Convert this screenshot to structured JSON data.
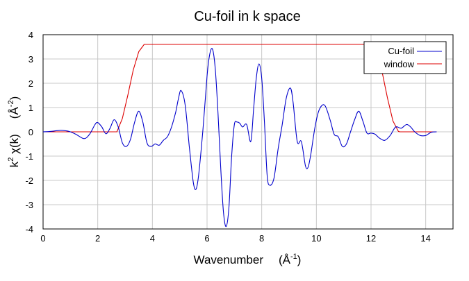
{
  "chart_data": {
    "type": "line",
    "title": "Cu-foil in k space",
    "xlabel": "Wavenumber    (Å-1)",
    "xlabel_parts": {
      "main": "Wavenumber",
      "unit_base": "(Å",
      "unit_sup": "-1",
      "unit_close": ")"
    },
    "ylabel": "k2 χ(k)    (Å-2)",
    "ylabel_parts": {
      "k": "k",
      "k_sup": "2",
      "chi": " χ(k)",
      "unit_base": "(Å",
      "unit_sup": "-2",
      "unit_close": ")"
    },
    "xlim": [
      0,
      15
    ],
    "ylim": [
      -4,
      4
    ],
    "xticks": [
      0,
      2,
      4,
      6,
      8,
      10,
      12,
      14
    ],
    "yticks": [
      -4,
      -3,
      -2,
      -1,
      0,
      1,
      2,
      3,
      4
    ],
    "grid": true,
    "legend_position": "upper right",
    "series": [
      {
        "name": "Cu-foil",
        "color": "#0000cc",
        "x": [
          0,
          0.3,
          0.6,
          0.8,
          1.0,
          1.2,
          1.5,
          1.7,
          1.9,
          2.0,
          2.15,
          2.3,
          2.45,
          2.6,
          2.75,
          2.9,
          3.05,
          3.2,
          3.35,
          3.5,
          3.65,
          3.8,
          3.95,
          4.1,
          4.25,
          4.4,
          4.55,
          4.7,
          4.85,
          4.95,
          5.05,
          5.2,
          5.35,
          5.5,
          5.6,
          5.7,
          5.85,
          6.0,
          6.1,
          6.2,
          6.3,
          6.4,
          6.5,
          6.6,
          6.7,
          6.8,
          6.9,
          7.0,
          7.1,
          7.2,
          7.3,
          7.45,
          7.6,
          7.7,
          7.8,
          7.9,
          8.0,
          8.1,
          8.2,
          8.3,
          8.45,
          8.6,
          8.75,
          8.9,
          9.05,
          9.15,
          9.3,
          9.45,
          9.6,
          9.7,
          9.8,
          9.95,
          10.1,
          10.3,
          10.5,
          10.65,
          10.8,
          10.95,
          11.1,
          11.25,
          11.4,
          11.55,
          11.7,
          11.85,
          12.0,
          12.15,
          12.3,
          12.5,
          12.7,
          12.9,
          13.1,
          13.3,
          13.45,
          13.6,
          13.8,
          14.0,
          14.2,
          14.4
        ],
        "y": [
          0,
          0.02,
          0.06,
          0.05,
          0,
          -0.1,
          -0.28,
          -0.1,
          0.3,
          0.38,
          0.2,
          -0.08,
          0.15,
          0.5,
          0.2,
          -0.45,
          -0.6,
          -0.3,
          0.4,
          0.85,
          0.4,
          -0.45,
          -0.6,
          -0.5,
          -0.55,
          -0.35,
          -0.2,
          0.2,
          0.8,
          1.35,
          1.7,
          1.1,
          -0.6,
          -2.1,
          -2.35,
          -1.7,
          0.1,
          2.3,
          3.2,
          3.4,
          2.6,
          0.8,
          -1.5,
          -3.3,
          -3.9,
          -3.1,
          -1.0,
          0.3,
          0.4,
          0.35,
          0.2,
          0.3,
          -0.4,
          0.9,
          2.2,
          2.8,
          2.2,
          0.4,
          -1.8,
          -2.2,
          -1.9,
          -0.7,
          0.3,
          1.4,
          1.8,
          1.2,
          -0.4,
          -0.4,
          -1.4,
          -1.45,
          -0.9,
          0.2,
          0.9,
          1.1,
          0.5,
          -0.1,
          -0.2,
          -0.6,
          -0.5,
          0.0,
          0.5,
          0.85,
          0.45,
          -0.05,
          -0.05,
          -0.1,
          -0.25,
          -0.35,
          -0.15,
          0.2,
          0.15,
          0.3,
          0.2,
          0.0,
          -0.15,
          -0.15,
          -0.02,
          0.0
        ]
      },
      {
        "name": "window",
        "color": "#dd0000",
        "x": [
          0,
          2.7,
          2.9,
          3.1,
          3.3,
          3.5,
          3.7,
          3.75,
          12.0,
          12.2,
          12.4,
          12.6,
          12.8,
          13.0,
          13.05,
          14.4
        ],
        "y": [
          0,
          0,
          0.55,
          1.5,
          2.55,
          3.3,
          3.6,
          3.6,
          3.6,
          3.3,
          2.5,
          1.4,
          0.45,
          0.02,
          0,
          0
        ]
      }
    ]
  }
}
